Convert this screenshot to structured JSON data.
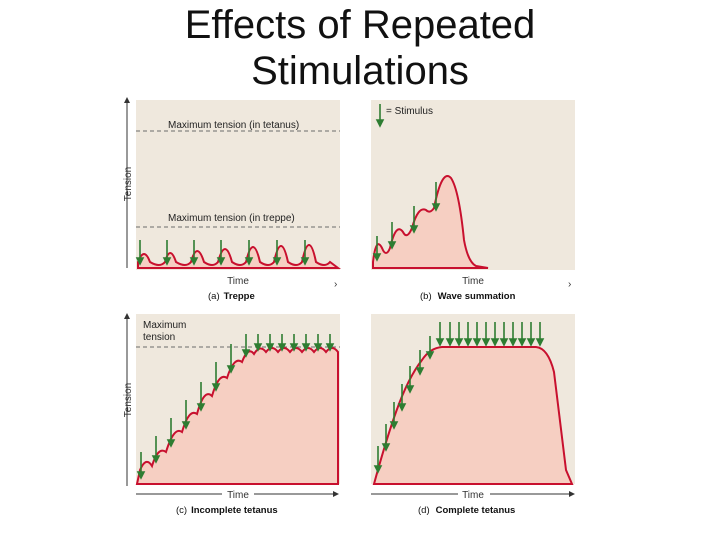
{
  "title_line1": "Effects of Repeated",
  "title_line2": "Stimulations",
  "colors": {
    "panel_bg": "#efe8dd",
    "fill": "#f6cfc2",
    "curve": "#c8102e",
    "arrow": "#2e7d32",
    "dashed": "#6b6b6b"
  },
  "axis": {
    "tension": "Tension",
    "time": "Time"
  },
  "panel_a": {
    "letter": "(a)",
    "caption": "Treppe",
    "max_tetanus": "Maximum tension (in tetanus)",
    "max_treppe": "Maximum tension (in treppe)"
  },
  "panel_b": {
    "letter": "(b)",
    "caption": "Wave summation",
    "legend": "= Stimulus"
  },
  "panel_c": {
    "letter": "(c)",
    "caption": "Incomplete  tetanus",
    "max_line1": "Maximum",
    "max_line2": "tension"
  },
  "panel_d": {
    "letter": "(d)",
    "caption": "Complete tetanus"
  }
}
